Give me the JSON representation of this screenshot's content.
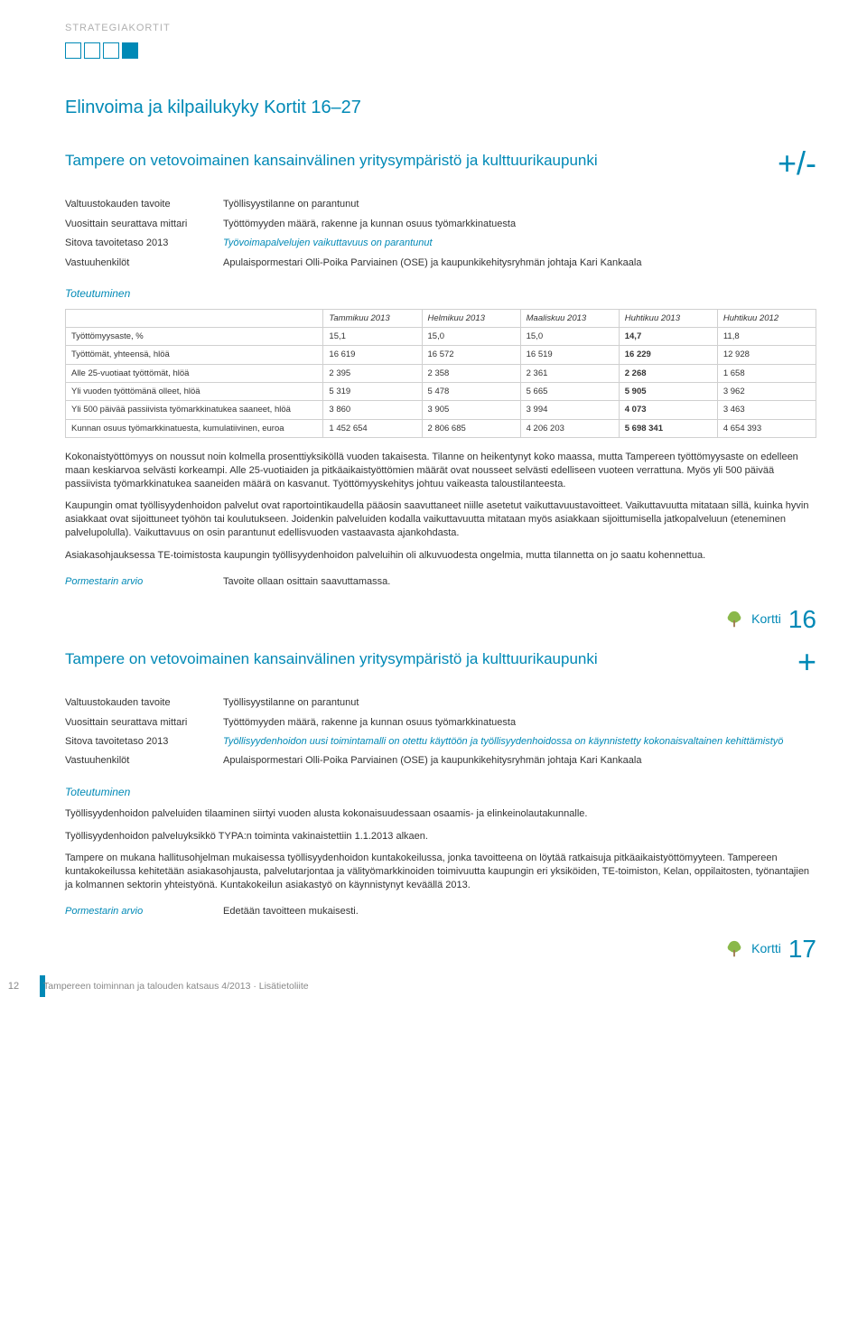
{
  "colors": {
    "accent": "#0089b6",
    "text": "#333333",
    "muted": "#b0b0b0",
    "border": "#d0d0d0",
    "footer": "#888888",
    "tree_canopy": "#8ab84a",
    "tree_trunk": "#a07850",
    "background": "#ffffff"
  },
  "typography": {
    "body_fontsize": 11,
    "section_title_fontsize": 20,
    "card_title_fontsize": 17,
    "status_symbol_fontsize": 36,
    "table_fontsize": 9.5,
    "kortti_num_fontsize": 28
  },
  "header": {
    "label": "STRATEGIAKORTIT",
    "squares": [
      false,
      false,
      false,
      true
    ]
  },
  "section_title": "Elinvoima ja kilpailukyky Kortit 16–27",
  "card16": {
    "title": "Tampere on vetovoimainen kansainvälinen yritysympäristö ja kulttuurikaupunki",
    "status_symbol": "+/-",
    "kv": [
      {
        "label": "Valtuustokauden tavoite",
        "value": "Työllisyystilanne on parantunut",
        "italic": false
      },
      {
        "label": "Vuosittain seurattava mittari",
        "value": "Työttömyyden määrä, rakenne ja kunnan osuus työmarkkinatuesta",
        "italic": false
      },
      {
        "label": "Sitova tavoitetaso 2013",
        "value": "Työvoimapalvelujen vaikuttavuus on parantunut",
        "italic": true
      },
      {
        "label": "Vastuuhenkilöt",
        "value": "Apulaispormestari Olli-Poika Parviainen (OSE) ja kaupunkikehitysryhmän johtaja Kari Kankaala",
        "italic": false
      }
    ],
    "toteutuminen_label": "Toteutuminen",
    "table": {
      "columns": [
        "",
        "Tammikuu 2013",
        "Helmikuu 2013",
        "Maaliskuu 2013",
        "Huhtikuu 2013",
        "Huhtikuu 2012"
      ],
      "col_widths": [
        "34%",
        "13%",
        "13%",
        "13%",
        "13%",
        "13%"
      ],
      "bold_col_index": 4,
      "rows": [
        [
          "Työttömyysaste, %",
          "15,1",
          "15,0",
          "15,0",
          "14,7",
          "11,8"
        ],
        [
          "Työttömät, yhteensä, hlöä",
          "16 619",
          "16 572",
          "16 519",
          "16 229",
          "12 928"
        ],
        [
          "Alle 25-vuotiaat työttömät, hlöä",
          "2 395",
          "2 358",
          "2 361",
          "2 268",
          "1 658"
        ],
        [
          "Yli vuoden työttömänä olleet, hlöä",
          "5 319",
          "5 478",
          "5 665",
          "5 905",
          "3 962"
        ],
        [
          "Yli 500 päivää passiivista työmarkkinatukea saaneet, hlöä",
          "3 860",
          "3 905",
          "3 994",
          "4 073",
          "3 463"
        ],
        [
          "Kunnan osuus työmarkkinatuesta, kumulatiivinen, euroa",
          "1 452 654",
          "2 806 685",
          "4 206 203",
          "5 698 341",
          "4 654 393"
        ]
      ]
    },
    "body": [
      "Kokonaistyöttömyys on noussut noin kolmella prosenttiyksiköllä vuoden takaisesta. Tilanne on heikentynyt koko maassa, mutta Tampereen työttömyysaste on edelleen maan keskiarvoa selvästi korkeampi. Alle 25-vuotiaiden ja pitkäaikaistyöttömien määrät ovat nousseet selvästi edelliseen vuoteen verrattuna. Myös yli 500 päivää passiivista työmarkkinatukea saaneiden määrä on kasvanut. Työttömyyskehitys johtuu vaikeasta taloustilanteesta.",
      "Kaupungin omat työllisyydenhoidon palvelut ovat raportointikaudella pääosin saavuttaneet niille asetetut vaikuttavuustavoitteet. Vaikuttavuutta mitataan sillä, kuinka hyvin asiakkaat ovat sijoittuneet työhön tai koulutukseen. Joidenkin palveluiden kodalla vaikuttavuutta mitataan myös asiakkaan sijoittumisella jatkopalveluun (eteneminen palvelupolulla). Vaikuttavuus on osin parantunut edellisvuoden vastaavasta ajankohdasta.",
      "Asiakasohjauksessa TE-toimistosta kaupungin työllisyydenhoidon palveluihin oli alkuvuodesta ongelmia, mutta tilannetta on jo saatu kohennettua."
    ],
    "arvio_label": "Pormestarin arvio",
    "arvio_value": "Tavoite ollaan osittain saavuttamassa.",
    "kortti_label": "Kortti",
    "kortti_num": "16"
  },
  "card17": {
    "title": "Tampere on vetovoimainen kansainvälinen yritysympäristö ja kulttuurikaupunki",
    "status_symbol": "+",
    "kv": [
      {
        "label": "Valtuustokauden tavoite",
        "value": "Työllisyystilanne on parantunut",
        "italic": false
      },
      {
        "label": "Vuosittain seurattava mittari",
        "value": "Työttömyyden määrä, rakenne ja kunnan osuus työmarkkinatuesta",
        "italic": false
      },
      {
        "label": "Sitova tavoitetaso 2013",
        "value": "Työllisyydenhoidon uusi toimintamalli on otettu käyttöön ja työllisyydenhoidossa on käynnistetty kokonaisvaltainen kehittämistyö",
        "italic": true
      },
      {
        "label": "Vastuuhenkilöt",
        "value": "Apulaispormestari Olli-Poika Parviainen (OSE) ja kaupunkikehitysryhmän johtaja Kari Kankaala",
        "italic": false
      }
    ],
    "toteutuminen_label": "Toteutuminen",
    "body": [
      "Työllisyydenhoidon palveluiden tilaaminen siirtyi vuoden alusta kokonaisuudessaan osaamis- ja elinkeinolautakunnalle.",
      "Työllisyydenhoidon palveluyksikkö TYPA:n toiminta vakinaistettiin 1.1.2013 alkaen.",
      "Tampere on mukana hallitusohjelman mukaisessa työllisyydenhoidon kuntakokeilussa, jonka tavoitteena on löytää ratkaisuja pitkäaikaistyöttömyyteen. Tampereen kuntakokeilussa kehitetään asiakasohjausta, palvelutarjontaa ja välityömarkkinoiden toimivuutta kaupungin eri yksiköiden, TE-toimiston, Kelan, oppilaitosten, työnantajien ja kolmannen sektorin yhteistyönä. Kuntakokeilun asiakastyö on käynnistynyt keväällä 2013."
    ],
    "arvio_label": "Pormestarin arvio",
    "arvio_value": "Edetään tavoitteen mukaisesti.",
    "kortti_label": "Kortti",
    "kortti_num": "17"
  },
  "footer": {
    "pagenum": "12",
    "text": "Tampereen toiminnan ja talouden katsaus 4/2013 · Lisätietoliite"
  }
}
